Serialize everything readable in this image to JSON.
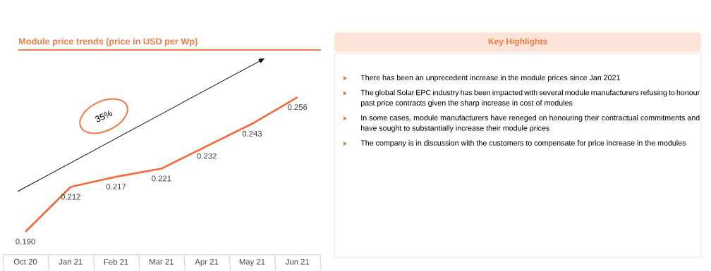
{
  "chart_data": [
    {
      "type": "line",
      "title": "Module price trends (price in USD per Wp)",
      "categories": [
        "Oct 20",
        "Jan 21",
        "Feb 21",
        "Mar 21",
        "Apr 21",
        "May 21",
        "Jun 21"
      ],
      "values": [
        0.19,
        0.212,
        0.217,
        0.221,
        0.232,
        0.243,
        0.256
      ],
      "value_labels": [
        "0.190",
        "0.212",
        "0.217",
        "0.221",
        "0.232",
        "0.243",
        "0.256"
      ],
      "color": "#f26b3a",
      "annotations": [
        "35%"
      ]
    },
    {
      "type": "other",
      "title": "Key Highlights",
      "annotations": [
        "There has been an unprecedent increase in the module prices since Jan 2021",
        "The global Solar EPC industry has been impacted with several module manufacturers refusing to honour past price contracts given the sharp increase in cost of modules",
        "In some cases, module manufacturers have reneged on honouring their contractual commitments and have sought to substantially increase their module prices",
        "The company is in discussion with the customers to compensate for price increase in the modules"
      ]
    }
  ]
}
